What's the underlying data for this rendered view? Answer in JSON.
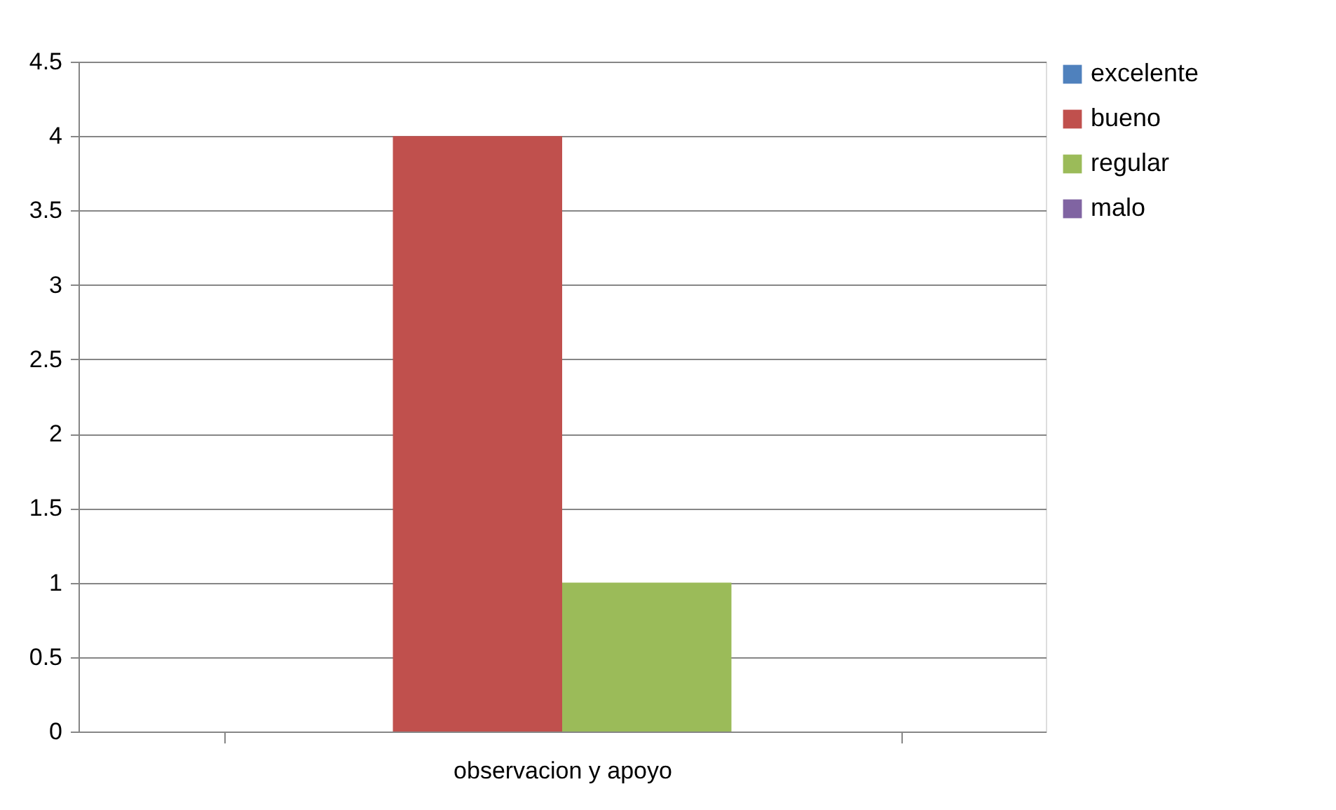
{
  "chart_data": {
    "type": "bar",
    "categories": [
      "observacion y apoyo"
    ],
    "series": [
      {
        "name": "excelente",
        "color": "#4f81bd",
        "values": [
          0
        ]
      },
      {
        "name": "bueno",
        "color": "#c0504d",
        "values": [
          4
        ]
      },
      {
        "name": "regular",
        "color": "#9bbb59",
        "values": [
          1
        ]
      },
      {
        "name": "malo",
        "color": "#8064a2",
        "values": [
          0
        ]
      }
    ],
    "ylim": [
      0,
      4.5
    ],
    "yticks": [
      0,
      0.5,
      1,
      1.5,
      2,
      2.5,
      3,
      3.5,
      4,
      4.5
    ],
    "grid": "y",
    "legend": "right"
  }
}
